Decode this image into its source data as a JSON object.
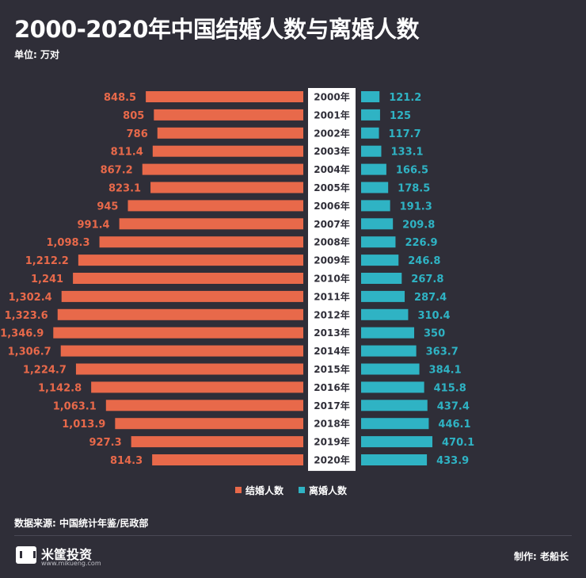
{
  "title": "2000-2020年中国结婚人数与离婚人数",
  "unit": "单位: 万对",
  "source": "数据来源: 中国统计年鉴/民政部",
  "logo": {
    "name": "米筐投资",
    "url": "www.mikueng.com"
  },
  "credit": "制作: 老船长",
  "colors": {
    "background": "#2f2e38",
    "marriage": "#e8694a",
    "divorce": "#2fb3c4",
    "year_column": "#ffffff"
  },
  "chart_data": {
    "type": "bar",
    "orientation": "horizontal-butterfly",
    "categories": [
      "2000年",
      "2001年",
      "2002年",
      "2003年",
      "2004年",
      "2005年",
      "2006年",
      "2007年",
      "2008年",
      "2009年",
      "2010年",
      "2011年",
      "2012年",
      "2013年",
      "2014年",
      "2015年",
      "2016年",
      "2017年",
      "2018年",
      "2019年",
      "2020年"
    ],
    "series": [
      {
        "name": "结婚人数",
        "side": "left",
        "values": [
          848.5,
          805,
          786,
          811.4,
          867.2,
          823.1,
          945,
          991.4,
          1098.3,
          1212.2,
          1241,
          1302.4,
          1323.6,
          1346.9,
          1306.7,
          1224.7,
          1142.8,
          1063.1,
          1013.9,
          927.3,
          814.3
        ],
        "labels": [
          "848.5",
          "805",
          "786",
          "811.4",
          "867.2",
          "823.1",
          "945",
          "991.4",
          "1,098.3",
          "1,212.2",
          "1,241",
          "1,302.4",
          "1,323.6",
          "1,346.9",
          "1,306.7",
          "1,224.7",
          "1,142.8",
          "1,063.1",
          "1,013.9",
          "927.3",
          "814.3"
        ]
      },
      {
        "name": "离婚人数",
        "side": "right",
        "values": [
          121.2,
          125,
          117.7,
          133.1,
          166.5,
          178.5,
          191.3,
          209.8,
          226.9,
          246.8,
          267.8,
          287.4,
          310.4,
          350,
          363.7,
          384.1,
          415.8,
          437.4,
          446.1,
          470.1,
          433.9
        ],
        "labels": [
          "121.2",
          "125",
          "117.7",
          "133.1",
          "166.5",
          "178.5",
          "191.3",
          "209.8",
          "226.9",
          "246.8",
          "267.8",
          "287.4",
          "310.4",
          "350",
          "363.7",
          "384.1",
          "415.8",
          "437.4",
          "446.1",
          "470.1",
          "433.9"
        ]
      }
    ],
    "legend_position": "bottom-center",
    "grid": false
  }
}
